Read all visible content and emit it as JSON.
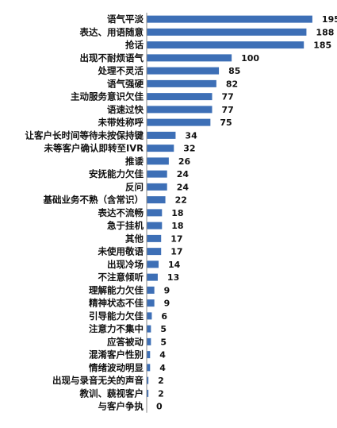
{
  "chart_data": {
    "type": "bar",
    "orientation": "horizontal",
    "bar_color": "#3d6fb6",
    "axis_color": "#8a8a8a",
    "xlim": [
      0,
      210
    ],
    "grid": false,
    "legend": "none",
    "categories": [
      "语气平淡",
      "表达、用语随意",
      "抢话",
      "出现不耐烦语气",
      "处理不灵活",
      "语气强硬",
      "主动服务意识欠佳",
      "语速过快",
      "未带姓称呼",
      "让客户长时间等待未按保持键",
      "未等客户确认即转至IVR",
      "推诿",
      "安抚能力欠佳",
      "反问",
      "基础业务不熟（含常识）",
      "表达不流畅",
      "急于挂机",
      "其他",
      "未使用敬语",
      "出现冷场",
      "不注意倾听",
      "理解能力欠佳",
      "精神状态不佳",
      "引导能力欠佳",
      "注意力不集中",
      "应答被动",
      "混淆客户性别",
      "情绪波动明显",
      "出现与录音无关的声音",
      "教训、藐视客户",
      "与客户争执"
    ],
    "values": [
      195,
      188,
      185,
      100,
      85,
      82,
      77,
      77,
      75,
      34,
      32,
      26,
      24,
      24,
      22,
      18,
      18,
      17,
      17,
      14,
      13,
      9,
      9,
      6,
      5,
      5,
      4,
      4,
      2,
      2,
      0
    ]
  }
}
